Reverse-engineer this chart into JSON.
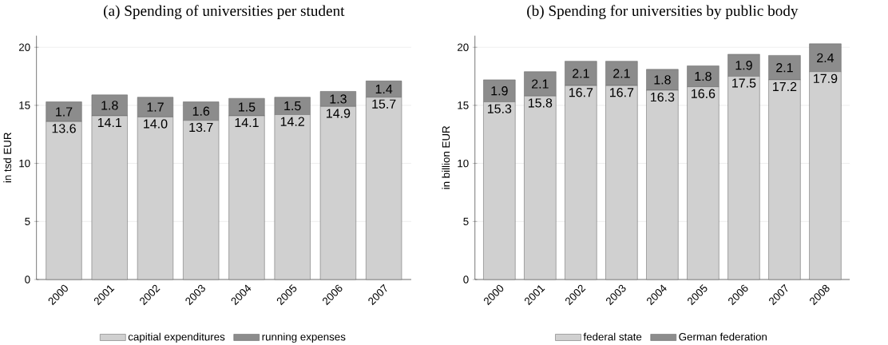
{
  "chart_data": [
    {
      "type": "bar",
      "stacked": true,
      "title": "(a) Spending of universities per student",
      "ylabel": "in tsd EUR",
      "categories": [
        "2000",
        "2001",
        "2002",
        "2003",
        "2004",
        "2005",
        "2006",
        "2007"
      ],
      "ylim": [
        0,
        21
      ],
      "yticks": [
        0,
        5,
        10,
        15,
        20
      ],
      "grid": "y",
      "legend": "bottom",
      "series": [
        {
          "name": "capitial expenditures",
          "color": "#d0d0d0",
          "values": [
            13.6,
            14.1,
            14.0,
            13.7,
            14.1,
            14.2,
            14.9,
            15.7
          ],
          "value_labels": [
            "13.6",
            "14.1",
            "14.0",
            "13.7",
            "14.1",
            "14.2",
            "14.9",
            "15.7"
          ]
        },
        {
          "name": "running expenses",
          "color": "#8c8c8c",
          "values": [
            1.7,
            1.8,
            1.7,
            1.6,
            1.5,
            1.5,
            1.3,
            1.4
          ],
          "value_labels": [
            "1.7",
            "1.8",
            "1.7",
            "1.6",
            "1.5",
            "1.5",
            "1.3",
            "1.4"
          ]
        }
      ]
    },
    {
      "type": "bar",
      "stacked": true,
      "title": "(b) Spending for universities by public body",
      "ylabel": "in billion EUR",
      "categories": [
        "2000",
        "2001",
        "2002",
        "2003",
        "2004",
        "2005",
        "2006",
        "2007",
        "2008"
      ],
      "ylim": [
        0,
        21
      ],
      "yticks": [
        0,
        5,
        10,
        15,
        20
      ],
      "grid": "y",
      "legend": "bottom",
      "series": [
        {
          "name": "federal state",
          "color": "#d0d0d0",
          "values": [
            15.3,
            15.8,
            16.7,
            16.7,
            16.3,
            16.6,
            17.5,
            17.2,
            17.9
          ],
          "value_labels": [
            "15.3",
            "15.8",
            "16.7",
            "16.7",
            "16.3",
            "16.6",
            "17.5",
            "17.2",
            "17.9"
          ]
        },
        {
          "name": "German federation",
          "color": "#8c8c8c",
          "values": [
            1.9,
            2.1,
            2.1,
            2.1,
            1.8,
            1.8,
            1.9,
            2.1,
            2.4
          ],
          "value_labels": [
            "1.9",
            "2.1",
            "2.1",
            "2.1",
            "1.8",
            "1.8",
            "1.9",
            "2.1",
            "2.4"
          ]
        }
      ]
    }
  ]
}
